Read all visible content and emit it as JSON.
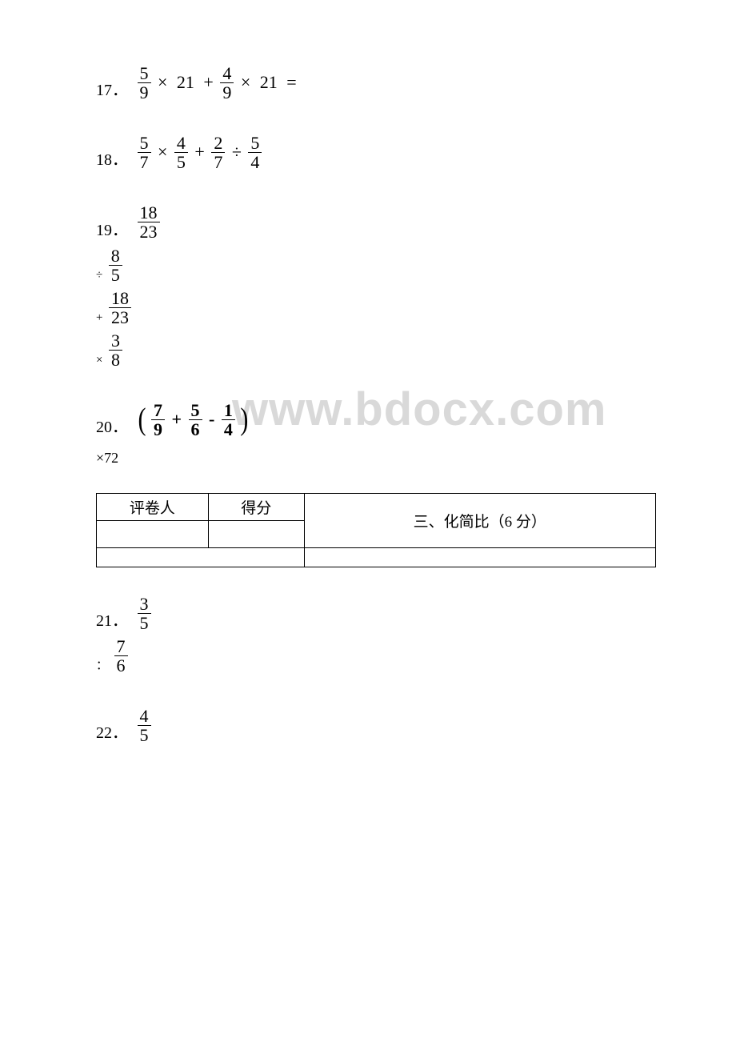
{
  "watermark": "www.bdocx.com",
  "problems": {
    "p17": {
      "number": "17．",
      "frac1": {
        "n": "5",
        "d": "9"
      },
      "op1": "×",
      "int1": "21",
      "op2": "+",
      "frac2": {
        "n": "4",
        "d": "9"
      },
      "op3": "×",
      "int2": "21",
      "eq": "="
    },
    "p18": {
      "number": "18．",
      "frac1": {
        "n": "5",
        "d": "7"
      },
      "op1": "×",
      "frac2": {
        "n": "4",
        "d": "5"
      },
      "op2": "+",
      "frac3": {
        "n": "2",
        "d": "7"
      },
      "op3": "÷",
      "frac4": {
        "n": "5",
        "d": "4"
      }
    },
    "p19": {
      "number": "19．",
      "line1": {
        "n": "18",
        "d": "23"
      },
      "line2": {
        "op": "÷",
        "n": "8",
        "d": "5"
      },
      "line3": {
        "op": "+",
        "n": "18",
        "d": "23"
      },
      "line4": {
        "op": "×",
        "n": "3",
        "d": "8"
      }
    },
    "p20": {
      "number": "20．",
      "lparen": "(",
      "frac1": {
        "n": "7",
        "d": "9"
      },
      "op1": "+",
      "frac2": {
        "n": "5",
        "d": "6"
      },
      "op2": "-",
      "frac3": {
        "n": "1",
        "d": "4"
      },
      "rparen": ")",
      "times72": "×72"
    }
  },
  "section": {
    "grader_label": "评卷人",
    "score_label": "得分",
    "title": "三、化简比（6 分）"
  },
  "simplify": {
    "p21": {
      "number": "21．",
      "frac1": {
        "n": "3",
        "d": "5"
      },
      "sep": "：",
      "frac2": {
        "n": "7",
        "d": "6"
      }
    },
    "p22": {
      "number": "22．",
      "frac1": {
        "n": "4",
        "d": "5"
      }
    }
  },
  "colors": {
    "text": "#000000",
    "background": "#ffffff",
    "watermark": "#d9d9d9",
    "border": "#000000"
  },
  "typography": {
    "body_fontsize_pt": 16,
    "watermark_fontsize_pt": 44,
    "watermark_font": "Arial",
    "body_font": "SimSun / Times"
  }
}
